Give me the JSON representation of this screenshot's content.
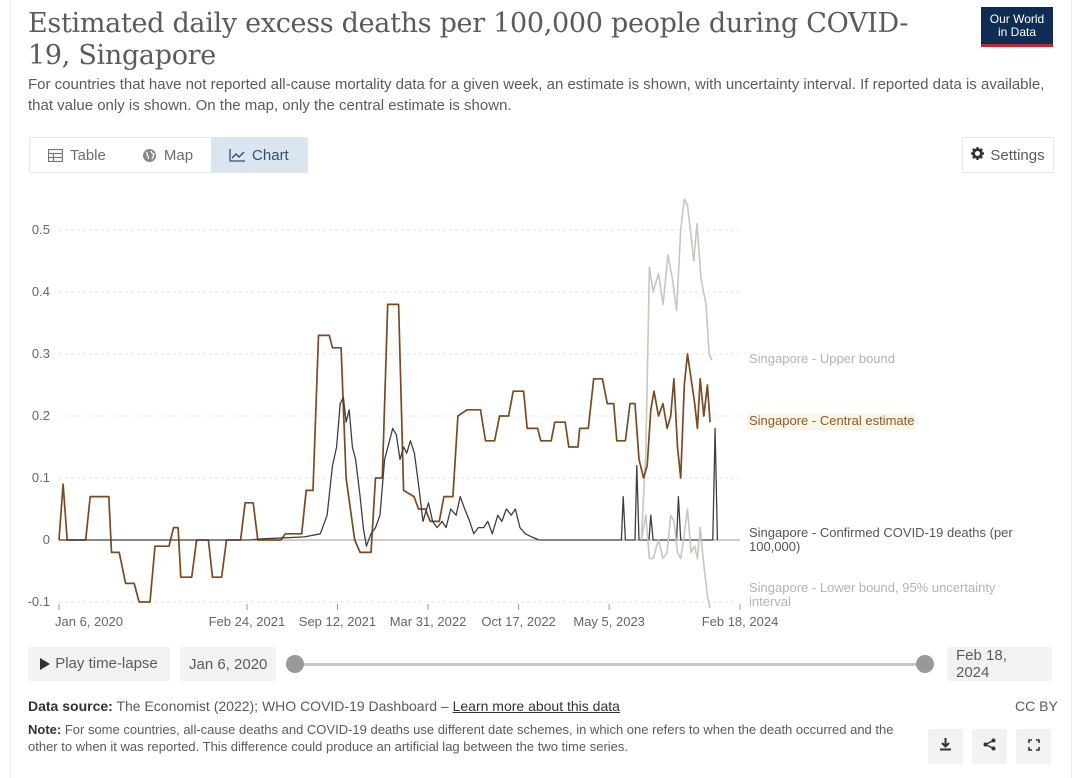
{
  "header": {
    "title": "Estimated daily excess deaths per 100,000 people during COVID-19, Singapore",
    "subtitle": "For countries that have not reported all-cause mortality data for a given week, an estimate is shown, with uncertainty interval. If reported data is available, that value only is shown. On the map, only the central estimate is shown.",
    "logo_line1": "Our World",
    "logo_line2": "in Data"
  },
  "tabs": [
    {
      "label": "Table",
      "icon": "table-icon",
      "active": false
    },
    {
      "label": "Map",
      "icon": "globe-icon",
      "active": false
    },
    {
      "label": "Chart",
      "icon": "line-chart-icon",
      "active": true
    }
  ],
  "settings_label": "Settings",
  "chart_data": {
    "type": "line",
    "title": "",
    "xlabel": "",
    "ylabel": "",
    "ylim": [
      -0.1,
      0.55
    ],
    "yticks": [
      -0.1,
      0,
      0.1,
      0.2,
      0.3,
      0.4,
      0.5
    ],
    "ytick_labels": [
      "-0.1",
      "0",
      "0.1",
      "0.2",
      "0.3",
      "0.4",
      "0.5"
    ],
    "x_range": [
      "2020-01-06",
      "2024-02-18"
    ],
    "xticks": [
      "2020-01-06",
      "2021-02-24",
      "2021-09-12",
      "2022-03-31",
      "2022-10-17",
      "2023-05-05",
      "2024-02-18"
    ],
    "xtick_labels": [
      "Jan 6, 2020",
      "Feb 24, 2021",
      "Sep 12, 2021",
      "Mar 31, 2022",
      "Oct 17, 2022",
      "May 5, 2023",
      "Feb 18, 2024"
    ],
    "grid": true,
    "series": [
      {
        "name": "Singapore - Upper bound",
        "color": "#c9c6bd",
        "points": [
          [
            "2023-07-15",
            0
          ],
          [
            "2023-07-25",
            0.14
          ],
          [
            "2023-08-02",
            0.44
          ],
          [
            "2023-08-10",
            0.4
          ],
          [
            "2023-08-22",
            0.43
          ],
          [
            "2023-09-01",
            0.38
          ],
          [
            "2023-09-12",
            0.46
          ],
          [
            "2023-09-22",
            0.42
          ],
          [
            "2023-10-01",
            0.37
          ],
          [
            "2023-10-10",
            0.5
          ],
          [
            "2023-10-18",
            0.55
          ],
          [
            "2023-10-25",
            0.54
          ],
          [
            "2023-11-02",
            0.49
          ],
          [
            "2023-11-08",
            0.45
          ],
          [
            "2023-11-15",
            0.51
          ],
          [
            "2023-11-24",
            0.42
          ],
          [
            "2023-12-05",
            0.38
          ],
          [
            "2023-12-12",
            0.3
          ],
          [
            "2023-12-18",
            0.29
          ]
        ]
      },
      {
        "name": "Singapore - Central estimate",
        "color": "#7b4a22",
        "points": [
          [
            "2020-01-06",
            0
          ],
          [
            "2020-01-15",
            0.09
          ],
          [
            "2020-01-24",
            0
          ],
          [
            "2020-02-15",
            0
          ],
          [
            "2020-03-05",
            0
          ],
          [
            "2020-03-15",
            0.07
          ],
          [
            "2020-04-25",
            0.07
          ],
          [
            "2020-05-01",
            -0.02
          ],
          [
            "2020-05-18",
            -0.02
          ],
          [
            "2020-06-01",
            -0.07
          ],
          [
            "2020-06-20",
            -0.07
          ],
          [
            "2020-07-01",
            -0.1
          ],
          [
            "2020-07-25",
            -0.1
          ],
          [
            "2020-08-05",
            -0.01
          ],
          [
            "2020-09-05",
            -0.01
          ],
          [
            "2020-09-15",
            0.02
          ],
          [
            "2020-09-25",
            0.02
          ],
          [
            "2020-10-01",
            -0.06
          ],
          [
            "2020-10-25",
            -0.06
          ],
          [
            "2020-11-05",
            0
          ],
          [
            "2020-12-01",
            0
          ],
          [
            "2020-12-10",
            -0.06
          ],
          [
            "2020-12-30",
            -0.06
          ],
          [
            "2021-01-10",
            0
          ],
          [
            "2021-02-10",
            0
          ],
          [
            "2021-02-20",
            0.06
          ],
          [
            "2021-03-10",
            0.06
          ],
          [
            "2021-03-20",
            0
          ],
          [
            "2021-05-10",
            0
          ],
          [
            "2021-05-20",
            0.01
          ],
          [
            "2021-06-25",
            0.01
          ],
          [
            "2021-07-05",
            0.08
          ],
          [
            "2021-07-20",
            0.08
          ],
          [
            "2021-08-01",
            0.33
          ],
          [
            "2021-08-25",
            0.33
          ],
          [
            "2021-09-01",
            0.31
          ],
          [
            "2021-09-20",
            0.31
          ],
          [
            "2021-10-01",
            0.1
          ],
          [
            "2021-10-20",
            0
          ],
          [
            "2021-11-01",
            -0.02
          ],
          [
            "2021-11-25",
            -0.02
          ],
          [
            "2021-12-05",
            0.1
          ],
          [
            "2021-12-20",
            0.1
          ],
          [
            "2022-01-01",
            0.38
          ],
          [
            "2022-01-25",
            0.38
          ],
          [
            "2022-02-05",
            0.08
          ],
          [
            "2022-02-28",
            0.07
          ],
          [
            "2022-03-10",
            0.05
          ],
          [
            "2022-03-25",
            0.05
          ],
          [
            "2022-04-05",
            0.03
          ],
          [
            "2022-04-25",
            0.03
          ],
          [
            "2022-05-05",
            0.07
          ],
          [
            "2022-05-25",
            0.07
          ],
          [
            "2022-06-05",
            0.2
          ],
          [
            "2022-06-25",
            0.21
          ],
          [
            "2022-07-25",
            0.21
          ],
          [
            "2022-08-05",
            0.16
          ],
          [
            "2022-08-25",
            0.16
          ],
          [
            "2022-09-05",
            0.2
          ],
          [
            "2022-09-25",
            0.2
          ],
          [
            "2022-10-05",
            0.24
          ],
          [
            "2022-10-28",
            0.24
          ],
          [
            "2022-11-05",
            0.18
          ],
          [
            "2022-11-28",
            0.18
          ],
          [
            "2022-12-05",
            0.16
          ],
          [
            "2022-12-28",
            0.16
          ],
          [
            "2023-01-05",
            0.19
          ],
          [
            "2023-01-28",
            0.19
          ],
          [
            "2023-02-05",
            0.15
          ],
          [
            "2023-02-25",
            0.15
          ],
          [
            "2023-03-01",
            0.18
          ],
          [
            "2023-03-20",
            0.18
          ],
          [
            "2023-04-01",
            0.26
          ],
          [
            "2023-04-20",
            0.26
          ],
          [
            "2023-05-01",
            0.22
          ],
          [
            "2023-05-15",
            0.22
          ],
          [
            "2023-05-22",
            0.16
          ],
          [
            "2023-06-10",
            0.16
          ],
          [
            "2023-06-20",
            0.22
          ],
          [
            "2023-07-01",
            0.22
          ],
          [
            "2023-07-10",
            0.13
          ],
          [
            "2023-07-20",
            0.1
          ],
          [
            "2023-07-28",
            0.12
          ],
          [
            "2023-08-05",
            0.21
          ],
          [
            "2023-08-12",
            0.24
          ],
          [
            "2023-08-22",
            0.2
          ],
          [
            "2023-09-01",
            0.22
          ],
          [
            "2023-09-10",
            0.18
          ],
          [
            "2023-09-18",
            0.2
          ],
          [
            "2023-09-25",
            0.26
          ],
          [
            "2023-10-03",
            0.15
          ],
          [
            "2023-10-10",
            0.1
          ],
          [
            "2023-10-18",
            0.25
          ],
          [
            "2023-10-25",
            0.3
          ],
          [
            "2023-11-02",
            0.26
          ],
          [
            "2023-11-10",
            0.22
          ],
          [
            "2023-11-16",
            0.18
          ],
          [
            "2023-11-22",
            0.26
          ],
          [
            "2023-11-30",
            0.2
          ],
          [
            "2023-12-08",
            0.25
          ],
          [
            "2023-12-14",
            0.19
          ]
        ]
      },
      {
        "name": "Singapore - Confirmed COVID-19 deaths (per 100,000)",
        "color": "#3f3f3f",
        "points": [
          [
            "2020-01-06",
            0
          ],
          [
            "2020-09-01",
            0
          ],
          [
            "2020-10-01",
            0
          ],
          [
            "2021-03-01",
            0
          ],
          [
            "2021-04-01",
            0.002
          ],
          [
            "2021-07-01",
            0.005
          ],
          [
            "2021-08-05",
            0.01
          ],
          [
            "2021-08-20",
            0.04
          ],
          [
            "2021-09-01",
            0.12
          ],
          [
            "2021-09-10",
            0.15
          ],
          [
            "2021-09-18",
            0.22
          ],
          [
            "2021-09-25",
            0.23
          ],
          [
            "2021-10-01",
            0.19
          ],
          [
            "2021-10-08",
            0.21
          ],
          [
            "2021-10-15",
            0.15
          ],
          [
            "2021-10-22",
            0.13
          ],
          [
            "2021-11-01",
            0.07
          ],
          [
            "2021-11-08",
            0.02
          ],
          [
            "2021-11-15",
            -0.01
          ],
          [
            "2021-11-25",
            0.01
          ],
          [
            "2021-12-05",
            0.02
          ],
          [
            "2021-12-15",
            0.04
          ],
          [
            "2021-12-25",
            0.13
          ],
          [
            "2022-01-05",
            0.16
          ],
          [
            "2022-01-12",
            0.18
          ],
          [
            "2022-01-20",
            0.17
          ],
          [
            "2022-01-28",
            0.13
          ],
          [
            "2022-02-05",
            0.15
          ],
          [
            "2022-02-12",
            0.14
          ],
          [
            "2022-02-20",
            0.16
          ],
          [
            "2022-03-01",
            0.14
          ],
          [
            "2022-03-10",
            0.09
          ],
          [
            "2022-03-20",
            0.03
          ],
          [
            "2022-04-01",
            0.06
          ],
          [
            "2022-04-10",
            0.03
          ],
          [
            "2022-04-20",
            0.02
          ],
          [
            "2022-05-01",
            0.03
          ],
          [
            "2022-05-10",
            0.02
          ],
          [
            "2022-05-20",
            0.05
          ],
          [
            "2022-06-01",
            0.04
          ],
          [
            "2022-06-10",
            0.07
          ],
          [
            "2022-06-20",
            0.05
          ],
          [
            "2022-07-01",
            0.03
          ],
          [
            "2022-07-10",
            0.01
          ],
          [
            "2022-07-20",
            0.02
          ],
          [
            "2022-08-01",
            0.02
          ],
          [
            "2022-08-10",
            0.03
          ],
          [
            "2022-08-20",
            0.01
          ],
          [
            "2022-09-01",
            0.04
          ],
          [
            "2022-09-10",
            0.03
          ],
          [
            "2022-09-20",
            0.05
          ],
          [
            "2022-10-01",
            0.04
          ],
          [
            "2022-10-10",
            0.05
          ],
          [
            "2022-10-20",
            0.02
          ],
          [
            "2022-11-01",
            0.01
          ],
          [
            "2022-11-15",
            0.005
          ],
          [
            "2022-12-01",
            0
          ],
          [
            "2023-01-15",
            0
          ],
          [
            "2023-05-01",
            0
          ],
          [
            "2023-06-01",
            0
          ],
          [
            "2023-06-05",
            0.07
          ],
          [
            "2023-06-10",
            0
          ],
          [
            "2023-07-01",
            0
          ],
          [
            "2023-07-05",
            0.12
          ],
          [
            "2023-07-10",
            0
          ],
          [
            "2023-08-01",
            0
          ],
          [
            "2023-08-05",
            0.04
          ],
          [
            "2023-08-10",
            0
          ],
          [
            "2023-10-01",
            0
          ],
          [
            "2023-10-05",
            0.07
          ],
          [
            "2023-10-10",
            0
          ],
          [
            "2023-12-20",
            0
          ],
          [
            "2023-12-25",
            0.18
          ],
          [
            "2023-12-30",
            0
          ]
        ]
      },
      {
        "name": "Singapore - Lower bound, 95% uncertainty interval",
        "color": "#c9c6bd",
        "points": [
          [
            "2023-07-15",
            0
          ],
          [
            "2023-07-25",
            0.04
          ],
          [
            "2023-08-02",
            -0.03
          ],
          [
            "2023-08-10",
            -0.03
          ],
          [
            "2023-08-22",
            0
          ],
          [
            "2023-09-01",
            -0.03
          ],
          [
            "2023-09-10",
            -0.02
          ],
          [
            "2023-09-18",
            0.04
          ],
          [
            "2023-09-25",
            0.03
          ],
          [
            "2023-10-03",
            -0.02
          ],
          [
            "2023-10-10",
            -0.03
          ],
          [
            "2023-10-18",
            0.01
          ],
          [
            "2023-10-25",
            0.05
          ],
          [
            "2023-11-02",
            -0.02
          ],
          [
            "2023-11-10",
            -0.01
          ],
          [
            "2023-11-16",
            -0.03
          ],
          [
            "2023-11-22",
            0.02
          ],
          [
            "2023-11-30",
            -0.04
          ],
          [
            "2023-12-08",
            -0.09
          ],
          [
            "2023-12-14",
            -0.11
          ]
        ]
      }
    ],
    "end_labels": [
      "Singapore - Upper bound",
      "Singapore - Central estimate",
      "Singapore - Confirmed COVID-19 deaths (per 100,000)",
      "Singapore - Lower bound, 95% uncertainty interval"
    ]
  },
  "timeline": {
    "play_label": "Play time-lapse",
    "start_date": "Jan 6, 2020",
    "end_date": "Feb 18, 2024"
  },
  "footer": {
    "source_label": "Data source:",
    "source_text": "The Economist (2022); WHO COVID-19 Dashboard –",
    "learn_more": "Learn more about this data",
    "note_label": "Note:",
    "note_text": "For some countries, all-cause deaths and COVID-19 deaths use different date schemes, in which one refers to when the death occurred and the other to when it was reported. This difference could produce an artificial lag between the two time series.",
    "license": "CC BY"
  },
  "actions": [
    {
      "name": "download-icon"
    },
    {
      "name": "share-icon"
    },
    {
      "name": "fullscreen-icon"
    }
  ]
}
